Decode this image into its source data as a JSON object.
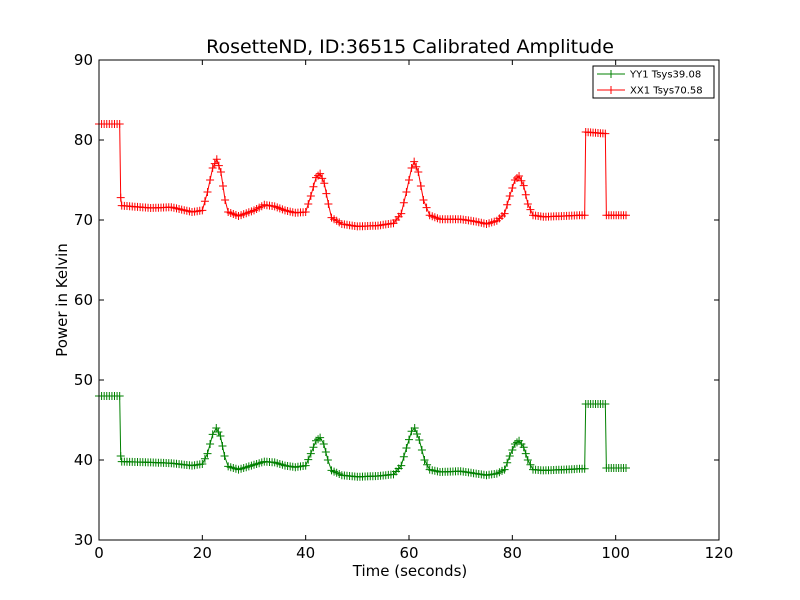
{
  "chart_data": {
    "type": "line",
    "title": "RosetteND, ID:36515 Calibrated Amplitude",
    "xlabel": "Time (seconds)",
    "ylabel": "Power in Kelvin",
    "xlim": [
      0,
      120
    ],
    "ylim": [
      30,
      90
    ],
    "xticks": [
      "0",
      "20",
      "40",
      "60",
      "80",
      "100",
      "120"
    ],
    "yticks": [
      "30",
      "40",
      "50",
      "60",
      "70",
      "80",
      "90"
    ],
    "grid": false,
    "legend_position": "top-right",
    "marker": "+",
    "series": [
      {
        "name": "YY1 Tsys39.08",
        "color": "#008000",
        "points": [
          [
            0,
            48.0
          ],
          [
            4,
            48.0
          ],
          [
            4.2,
            40.5
          ],
          [
            4.4,
            39.8
          ],
          [
            10,
            39.7
          ],
          [
            14,
            39.6
          ],
          [
            18,
            39.3
          ],
          [
            20,
            39.5
          ],
          [
            21,
            40.8
          ],
          [
            22,
            43.2
          ],
          [
            22.7,
            44.0
          ],
          [
            23.5,
            43.0
          ],
          [
            24.3,
            40.5
          ],
          [
            25,
            39.2
          ],
          [
            27,
            38.8
          ],
          [
            30,
            39.4
          ],
          [
            32,
            39.8
          ],
          [
            34,
            39.7
          ],
          [
            36,
            39.3
          ],
          [
            38,
            39.1
          ],
          [
            40,
            39.3
          ],
          [
            41,
            40.8
          ],
          [
            42,
            42.4
          ],
          [
            42.8,
            42.8
          ],
          [
            43.5,
            42.0
          ],
          [
            44.3,
            40.0
          ],
          [
            45,
            38.7
          ],
          [
            47,
            38.1
          ],
          [
            50,
            37.9
          ],
          [
            54,
            38.0
          ],
          [
            57,
            38.2
          ],
          [
            58.5,
            39.3
          ],
          [
            59.5,
            41.5
          ],
          [
            60.5,
            43.6
          ],
          [
            61.1,
            44.0
          ],
          [
            62,
            42.5
          ],
          [
            63,
            40.0
          ],
          [
            64,
            38.8
          ],
          [
            66,
            38.5
          ],
          [
            70,
            38.6
          ],
          [
            73,
            38.3
          ],
          [
            75,
            38.1
          ],
          [
            77,
            38.3
          ],
          [
            78.5,
            38.8
          ],
          [
            79.5,
            40.5
          ],
          [
            80.5,
            42.0
          ],
          [
            81.3,
            42.4
          ],
          [
            82.2,
            41.6
          ],
          [
            83,
            40.0
          ],
          [
            84,
            38.8
          ],
          [
            86,
            38.7
          ],
          [
            90,
            38.8
          ],
          [
            93,
            38.9
          ],
          [
            94,
            38.9
          ],
          [
            94.2,
            47.0
          ],
          [
            98,
            47.0
          ],
          [
            98.2,
            39.0
          ],
          [
            102,
            39.0
          ]
        ]
      },
      {
        "name": "XX1 Tsys70.58",
        "color": "#ff0000",
        "points": [
          [
            0,
            82.0
          ],
          [
            4,
            82.0
          ],
          [
            4.2,
            72.8
          ],
          [
            4.4,
            71.8
          ],
          [
            10,
            71.5
          ],
          [
            14,
            71.6
          ],
          [
            18,
            71.0
          ],
          [
            20,
            71.2
          ],
          [
            21,
            73.5
          ],
          [
            22,
            76.5
          ],
          [
            22.8,
            77.6
          ],
          [
            23.6,
            76.0
          ],
          [
            24.4,
            72.5
          ],
          [
            25,
            71.0
          ],
          [
            27,
            70.5
          ],
          [
            30,
            71.2
          ],
          [
            32,
            71.9
          ],
          [
            34,
            71.7
          ],
          [
            36,
            71.2
          ],
          [
            38,
            70.9
          ],
          [
            40,
            71.0
          ],
          [
            41,
            73.0
          ],
          [
            42,
            75.3
          ],
          [
            42.8,
            75.8
          ],
          [
            43.6,
            74.6
          ],
          [
            44.4,
            72.0
          ],
          [
            45,
            70.3
          ],
          [
            47,
            69.5
          ],
          [
            50,
            69.2
          ],
          [
            54,
            69.3
          ],
          [
            57,
            69.6
          ],
          [
            58.5,
            70.8
          ],
          [
            59.5,
            73.5
          ],
          [
            60.5,
            76.5
          ],
          [
            61,
            77.3
          ],
          [
            61.8,
            76.0
          ],
          [
            62.8,
            72.5
          ],
          [
            64,
            70.6
          ],
          [
            66,
            70.1
          ],
          [
            70,
            70.1
          ],
          [
            73,
            69.8
          ],
          [
            75,
            69.5
          ],
          [
            77,
            69.9
          ],
          [
            78.5,
            70.8
          ],
          [
            79.5,
            73.0
          ],
          [
            80.5,
            75.0
          ],
          [
            81.3,
            75.5
          ],
          [
            82.2,
            74.3
          ],
          [
            83,
            72.0
          ],
          [
            84,
            70.6
          ],
          [
            86,
            70.4
          ],
          [
            90,
            70.5
          ],
          [
            93,
            70.6
          ],
          [
            94,
            70.6
          ],
          [
            94.2,
            81.0
          ],
          [
            98,
            80.8
          ],
          [
            98.2,
            70.6
          ],
          [
            102,
            70.6
          ]
        ]
      }
    ]
  }
}
